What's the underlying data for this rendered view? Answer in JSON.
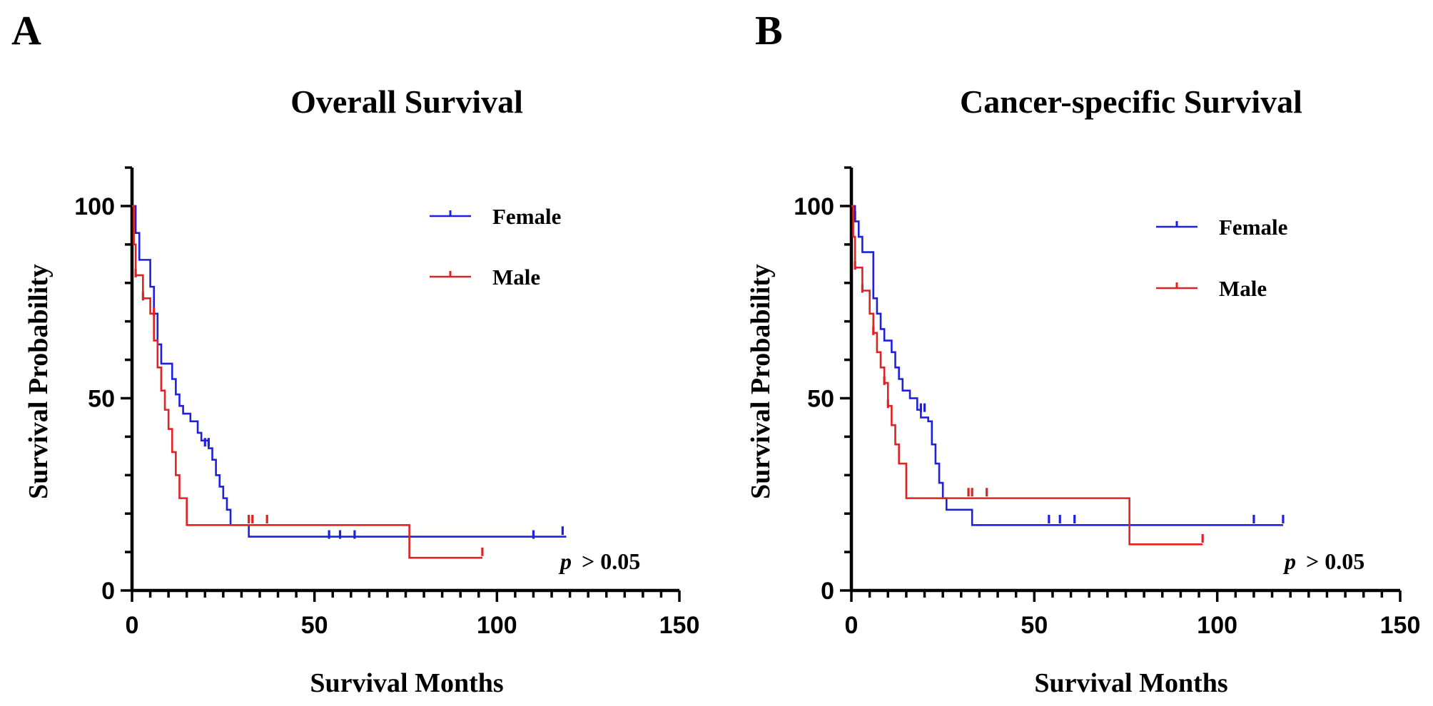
{
  "colors": {
    "female": "#1f1fe0",
    "male": "#e02222",
    "axis": "#000000"
  },
  "chart_data": [
    {
      "panel": "A",
      "type": "line",
      "title": "Overall Survival",
      "xlabel": "Survival Months",
      "ylabel": "Survival Probability",
      "xlim": [
        0,
        150
      ],
      "ylim": [
        0,
        110
      ],
      "xticks": [
        0,
        50,
        100,
        150
      ],
      "yticks": [
        0,
        50,
        100
      ],
      "xticks_labels": [
        "0",
        "50",
        "100",
        "150"
      ],
      "yticks_labels": [
        "0",
        "50",
        "100"
      ],
      "legend_position": "top-right",
      "annotation": {
        "p": "p",
        "rest": "> 0.05"
      },
      "series": [
        {
          "name": "Female",
          "color": "#1f1fe0",
          "steps": [
            [
              0,
              100
            ],
            [
              1,
              93
            ],
            [
              2,
              86
            ],
            [
              5,
              79
            ],
            [
              6,
              72
            ],
            [
              7,
              64
            ],
            [
              8,
              59
            ],
            [
              11,
              55
            ],
            [
              12,
              51
            ],
            [
              13,
              48
            ],
            [
              14,
              46
            ],
            [
              16,
              44
            ],
            [
              18,
              41
            ],
            [
              19,
              39
            ],
            [
              21,
              37
            ],
            [
              22,
              34
            ],
            [
              23,
              30
            ],
            [
              24,
              27
            ],
            [
              25,
              24
            ],
            [
              26,
              21
            ],
            [
              27,
              17
            ],
            [
              32,
              14
            ],
            [
              119,
              14
            ]
          ],
          "censored": [
            [
              20,
              38
            ],
            [
              21,
              38
            ],
            [
              54,
              14
            ],
            [
              57,
              14
            ],
            [
              61,
              14
            ],
            [
              110,
              14
            ],
            [
              118,
              15
            ]
          ]
        },
        {
          "name": "Male",
          "color": "#e02222",
          "steps": [
            [
              0,
              100
            ],
            [
              0.5,
              90
            ],
            [
              1,
              82
            ],
            [
              3,
              76
            ],
            [
              5,
              72
            ],
            [
              6,
              65
            ],
            [
              7,
              58
            ],
            [
              8,
              52
            ],
            [
              9,
              47
            ],
            [
              10,
              42
            ],
            [
              11,
              36
            ],
            [
              12,
              30
            ],
            [
              13,
              24
            ],
            [
              15,
              17
            ],
            [
              76,
              17
            ],
            [
              76,
              8.5
            ],
            [
              96,
              8.5
            ]
          ],
          "censored": [
            [
              1,
              82
            ],
            [
              3,
              76
            ],
            [
              6,
              72
            ],
            [
              32,
              18
            ],
            [
              33,
              18
            ],
            [
              37,
              18
            ],
            [
              96,
              9.5
            ]
          ]
        }
      ]
    },
    {
      "panel": "B",
      "type": "line",
      "title": "Cancer-specific Survival",
      "xlabel": "Survival Months",
      "ylabel": "Survival Probability",
      "xlim": [
        0,
        150
      ],
      "ylim": [
        0,
        110
      ],
      "xticks": [
        0,
        50,
        100,
        150
      ],
      "yticks": [
        0,
        50,
        100
      ],
      "xticks_labels": [
        "0",
        "50",
        "100",
        "150"
      ],
      "yticks_labels": [
        "0",
        "50",
        "100"
      ],
      "legend_position": "top-right",
      "annotation": {
        "p": "p",
        "rest": "> 0.05"
      },
      "series": [
        {
          "name": "Female",
          "color": "#1f1fe0",
          "steps": [
            [
              0,
              100
            ],
            [
              1,
              96
            ],
            [
              2,
              92
            ],
            [
              3,
              88
            ],
            [
              6,
              76
            ],
            [
              7,
              72
            ],
            [
              8,
              68
            ],
            [
              9,
              65
            ],
            [
              11,
              62
            ],
            [
              12,
              58
            ],
            [
              13,
              55
            ],
            [
              14,
              52
            ],
            [
              16,
              50
            ],
            [
              18,
              47
            ],
            [
              19,
              45
            ],
            [
              21,
              44
            ],
            [
              22,
              38
            ],
            [
              23,
              33
            ],
            [
              24,
              28
            ],
            [
              25,
              24
            ],
            [
              26,
              21
            ],
            [
              33,
              17
            ],
            [
              118,
              17
            ]
          ],
          "censored": [
            [
              1,
              97
            ],
            [
              19,
              47
            ],
            [
              20,
              47
            ],
            [
              54,
              18
            ],
            [
              57,
              18
            ],
            [
              61,
              18
            ],
            [
              110,
              18
            ],
            [
              118,
              18
            ]
          ]
        },
        {
          "name": "Male",
          "color": "#e02222",
          "steps": [
            [
              0,
              100
            ],
            [
              0.5,
              92
            ],
            [
              1,
              84
            ],
            [
              3,
              78
            ],
            [
              5,
              72
            ],
            [
              6,
              67
            ],
            [
              7,
              62
            ],
            [
              8,
              58
            ],
            [
              9,
              54
            ],
            [
              10,
              48
            ],
            [
              11,
              43
            ],
            [
              12,
              38
            ],
            [
              13,
              33
            ],
            [
              15,
              24
            ],
            [
              76,
              24
            ],
            [
              76,
              12
            ],
            [
              96,
              12
            ]
          ],
          "censored": [
            [
              1,
              84
            ],
            [
              3,
              78
            ],
            [
              6,
              67
            ],
            [
              9,
              54
            ],
            [
              10,
              48
            ],
            [
              32,
              25
            ],
            [
              33,
              25
            ],
            [
              37,
              25
            ],
            [
              96,
              13
            ]
          ]
        }
      ]
    }
  ]
}
